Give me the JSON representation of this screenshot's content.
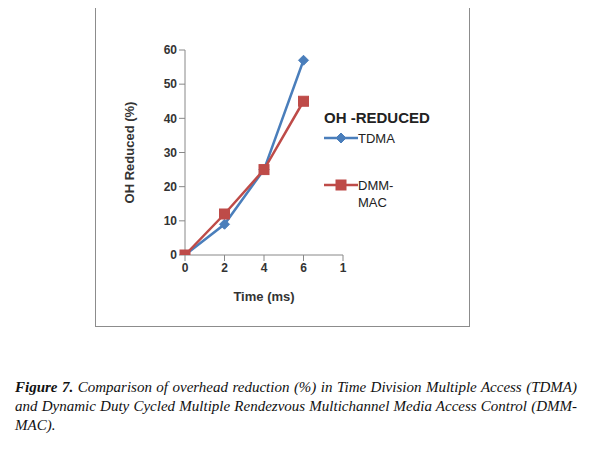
{
  "chart_data": {
    "type": "line",
    "legend_title": "OH -REDUCED",
    "x_label": "Time (ms)",
    "y_label": "OH Reduced (%)",
    "categories": [
      "0",
      "2",
      "4",
      "6",
      "1"
    ],
    "series": [
      {
        "name": "TDMA",
        "color": "#4a7ebb",
        "marker": "diamond",
        "values": [
          0,
          9,
          25,
          57,
          null
        ]
      },
      {
        "name": "DMM-MAC",
        "color": "#be4b48",
        "marker": "square",
        "values": [
          0,
          12,
          25,
          45,
          null
        ]
      }
    ],
    "ylim": [
      0,
      60
    ],
    "yticks": [
      0,
      10,
      20,
      30,
      40,
      50,
      60
    ],
    "grid": false,
    "legend": "right",
    "caption_label": "Figure 7.",
    "caption": "Comparison of overhead reduction (%) in Time Division Multiple Access (TDMA) and Dynamic Duty Cycled Multiple Rendezvous Multichannel Media Access Control (DMM-MAC)."
  }
}
